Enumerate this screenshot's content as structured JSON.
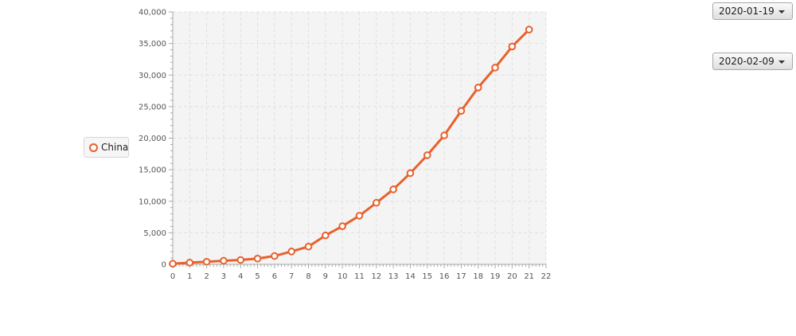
{
  "chart_data": {
    "type": "line",
    "x": [
      0,
      1,
      2,
      3,
      4,
      5,
      6,
      7,
      8,
      9,
      10,
      11,
      12,
      13,
      14,
      15,
      16,
      17,
      18,
      19,
      20,
      21
    ],
    "series": [
      {
        "name": "China",
        "values": [
          100,
          270,
          410,
          570,
          690,
          910,
          1320,
          2040,
          2810,
          4580,
          6050,
          7710,
          9750,
          11880,
          14450,
          17300,
          20440,
          24320,
          28020,
          31170,
          34520,
          37200
        ]
      }
    ],
    "xlim": [
      0,
      22
    ],
    "ylim": [
      0,
      40000
    ],
    "xticks": [
      0,
      1,
      2,
      3,
      4,
      5,
      6,
      7,
      8,
      9,
      10,
      11,
      12,
      13,
      14,
      15,
      16,
      17,
      18,
      19,
      20,
      21,
      22
    ],
    "yticks": [
      "0",
      "5,000",
      "10,000",
      "15,000",
      "20,000",
      "25,000",
      "30,000",
      "35,000",
      "40,000"
    ],
    "grid": true,
    "legend_position": "left",
    "color": "#e8612c"
  },
  "controls": {
    "start_date": "2020-01-19",
    "end_date": "2020-02-09"
  }
}
